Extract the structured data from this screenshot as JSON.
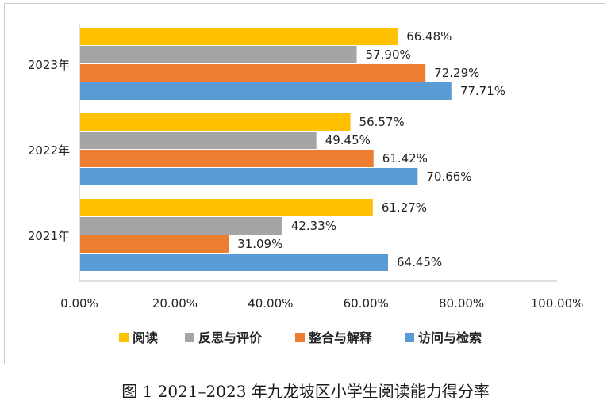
{
  "caption": "图 1   2021–2023 年九龙坡区小学生阅读能力得分率",
  "chart_data": {
    "type": "bar",
    "orientation": "horizontal",
    "categories": [
      "2023年",
      "2022年",
      "2021年"
    ],
    "series": [
      {
        "name": "阅读",
        "color": "#FFC000",
        "values": [
          66.48,
          56.57,
          61.27
        ],
        "labels": [
          "66.48%",
          "56.57%",
          "61.27%"
        ]
      },
      {
        "name": "反思与评价",
        "color": "#A5A5A5",
        "values": [
          57.9,
          49.45,
          42.33
        ],
        "labels": [
          "57.90%",
          "49.45%",
          "42.33%"
        ]
      },
      {
        "name": "整合与解释",
        "color": "#ED7D31",
        "values": [
          72.29,
          61.42,
          31.09
        ],
        "labels": [
          "72.29%",
          "61.42%",
          "31.09%"
        ]
      },
      {
        "name": "访问与检索",
        "color": "#5B9BD5",
        "values": [
          77.71,
          70.66,
          64.45
        ],
        "labels": [
          "77.71%",
          "70.66%",
          "64.45%"
        ]
      }
    ],
    "xlim": [
      0,
      100
    ],
    "x_ticks": [
      "0.00%",
      "20.00%",
      "40.00%",
      "60.00%",
      "80.00%",
      "100.00%"
    ],
    "grid": false,
    "legend_position": "bottom"
  }
}
